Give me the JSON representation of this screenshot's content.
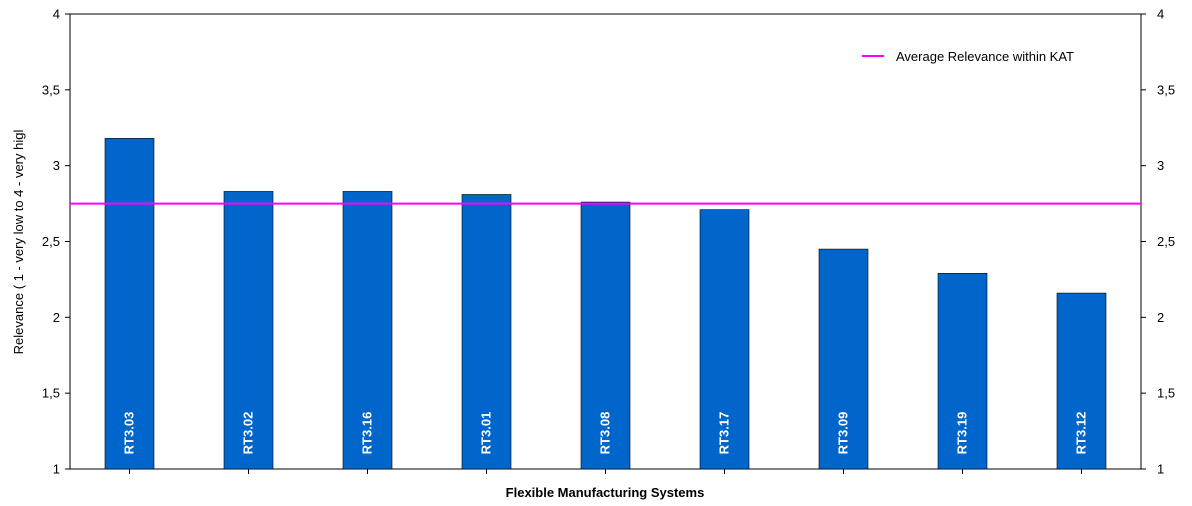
{
  "chart_data": {
    "type": "bar",
    "categories": [
      "RT3.03",
      "RT3.02",
      "RT3.16",
      "RT3.01",
      "RT3.08",
      "RT3.17",
      "RT3.09",
      "RT3.19",
      "RT3.12"
    ],
    "values": [
      3.18,
      2.83,
      2.83,
      2.81,
      2.76,
      2.71,
      2.45,
      2.29,
      2.16
    ],
    "reference_line": {
      "name": "Average Relevance within KAT",
      "value": 2.75,
      "color": "#ff00ff"
    },
    "xlabel": "Flexible Manufacturing Systems",
    "ylabel": "Relevance ( 1 - very low to 4 - very higl",
    "ylim": [
      1,
      4
    ],
    "yticks": [
      1,
      1.5,
      2,
      2.5,
      3,
      3.5,
      4
    ],
    "ytick_labels": [
      "1",
      "1,5",
      "2",
      "2,5",
      "3",
      "3,5",
      "4"
    ],
    "secondary_y_axis": true,
    "bar_color": "#0066cc",
    "legend_position": "top-right",
    "grid": false
  }
}
